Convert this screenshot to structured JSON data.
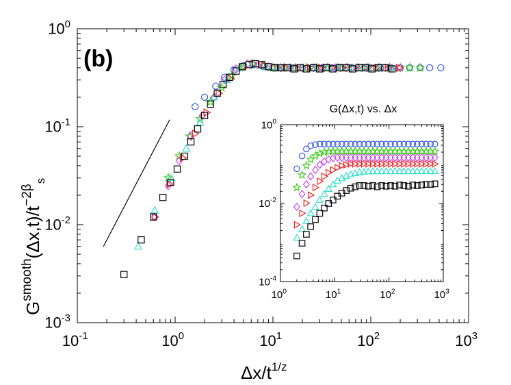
{
  "chart_data": [
    {
      "type": "scatter",
      "panel_label": "(b)",
      "xscale": "log",
      "yscale": "log",
      "xlim": [
        0.1,
        1000
      ],
      "ylim": [
        0.001,
        1
      ],
      "x_ticks": [
        {
          "base": "10",
          "exp": "-1",
          "v": 0.1
        },
        {
          "base": "10",
          "exp": "0",
          "v": 1
        },
        {
          "base": "10",
          "exp": "1",
          "v": 10
        },
        {
          "base": "10",
          "exp": "2",
          "v": 100
        },
        {
          "base": "10",
          "exp": "3",
          "v": 1000
        }
      ],
      "y_ticks": [
        {
          "base": "10",
          "exp": "-3",
          "v": 0.001
        },
        {
          "base": "10",
          "exp": "-2",
          "v": 0.01
        },
        {
          "base": "10",
          "exp": "-1",
          "v": 0.1
        },
        {
          "base": "10",
          "exp": "0",
          "v": 1
        }
      ],
      "xlabel": {
        "main": "Δx/t",
        "sup": "1/z"
      },
      "ylabel": {
        "base": "G",
        "sup1": "smooth",
        "mid": "(Δx,t)/t",
        "sup2": "−2β",
        "sub": "s"
      },
      "guide_line": {
        "x": [
          0.185,
          0.88
        ],
        "y": [
          0.006,
          0.118
        ],
        "color": "#000000"
      },
      "series": [
        {
          "name": "circle",
          "marker": "circle",
          "color": "#3355ee",
          "x": [
            1.6,
            2.0,
            2.6,
            3.2,
            4.0,
            5.0,
            6.3,
            8.0,
            10,
            13,
            16,
            20,
            25,
            32,
            40,
            50,
            63,
            80,
            100,
            126,
            160,
            200,
            250,
            320,
            400,
            520
          ],
          "y": [
            0.16,
            0.2,
            0.26,
            0.32,
            0.38,
            0.42,
            0.43,
            0.41,
            0.4,
            0.4,
            0.4,
            0.4,
            0.4,
            0.4,
            0.4,
            0.4,
            0.4,
            0.4,
            0.4,
            0.4,
            0.4,
            0.4,
            0.4,
            0.4,
            0.4,
            0.4
          ]
        },
        {
          "name": "star",
          "marker": "star",
          "color": "#44cc22",
          "x": [
            0.85,
            1.1,
            1.4,
            1.8,
            2.3,
            3.0,
            3.8,
            4.9,
            6.2,
            8,
            10,
            13,
            17,
            22,
            28,
            36,
            46,
            58,
            75,
            96,
            122,
            156,
            200,
            250,
            320
          ],
          "y": [
            0.03,
            0.05,
            0.08,
            0.12,
            0.18,
            0.25,
            0.33,
            0.41,
            0.44,
            0.42,
            0.4,
            0.4,
            0.4,
            0.4,
            0.4,
            0.4,
            0.4,
            0.4,
            0.4,
            0.4,
            0.4,
            0.4,
            0.4,
            0.4,
            0.4
          ]
        },
        {
          "name": "diamond",
          "marker": "diamond",
          "color": "#cc44ee",
          "x": [
            0.62,
            0.85,
            1.1,
            1.45,
            1.9,
            2.5,
            3.2,
            4.2,
            5.5,
            7,
            9,
            12,
            15,
            20,
            26,
            33,
            43,
            56,
            72,
            93,
            120,
            155,
            200
          ],
          "y": [
            0.012,
            0.025,
            0.045,
            0.08,
            0.13,
            0.2,
            0.3,
            0.39,
            0.44,
            0.43,
            0.41,
            0.4,
            0.4,
            0.4,
            0.4,
            0.4,
            0.4,
            0.4,
            0.4,
            0.4,
            0.4,
            0.4,
            0.4
          ]
        },
        {
          "name": "triangle-right",
          "marker": "triangle-right",
          "color": "#ee2222",
          "x": [
            0.62,
            0.88,
            1.2,
            1.6,
            2.1,
            2.8,
            3.7,
            4.8,
            6.3,
            8.2,
            11,
            14,
            18,
            24,
            31,
            40,
            52,
            68,
            88,
            115,
            150,
            195
          ],
          "y": [
            0.012,
            0.026,
            0.048,
            0.085,
            0.14,
            0.22,
            0.31,
            0.4,
            0.44,
            0.42,
            0.4,
            0.4,
            0.4,
            0.4,
            0.4,
            0.4,
            0.4,
            0.4,
            0.4,
            0.4,
            0.4,
            0.4
          ]
        },
        {
          "name": "triangle-up",
          "marker": "triangle-up",
          "color": "#33ddcc",
          "x": [
            0.42,
            0.62,
            0.9,
            1.3,
            1.8,
            2.5,
            3.4,
            4.6,
            6.2,
            8.4,
            11,
            15,
            20,
            27,
            37,
            50,
            67,
            90,
            122,
            165
          ],
          "y": [
            0.006,
            0.014,
            0.03,
            0.06,
            0.11,
            0.2,
            0.3,
            0.4,
            0.44,
            0.41,
            0.4,
            0.4,
            0.4,
            0.4,
            0.4,
            0.4,
            0.4,
            0.4,
            0.4,
            0.4
          ]
        },
        {
          "name": "square",
          "marker": "square",
          "color": "#000000",
          "x": [
            0.3,
            0.45,
            0.6,
            0.75,
            0.9,
            1.05,
            1.25,
            1.45,
            1.7,
            2.0,
            2.3,
            2.7,
            3.1,
            3.6,
            4.2,
            4.9,
            5.7,
            6.6,
            7.7,
            9,
            10.5,
            12,
            14,
            16.5,
            19,
            22,
            26,
            30,
            35,
            41,
            48,
            56,
            65,
            76,
            88,
            103,
            120,
            140,
            165
          ],
          "y": [
            0.0031,
            0.007,
            0.012,
            0.019,
            0.027,
            0.037,
            0.05,
            0.07,
            0.095,
            0.13,
            0.17,
            0.22,
            0.27,
            0.32,
            0.37,
            0.41,
            0.43,
            0.44,
            0.43,
            0.41,
            0.4,
            0.4,
            0.4,
            0.39,
            0.4,
            0.39,
            0.4,
            0.39,
            0.4,
            0.39,
            0.4,
            0.4,
            0.39,
            0.4,
            0.4,
            0.39,
            0.4,
            0.4,
            0.39
          ]
        }
      ]
    },
    {
      "type": "scatter",
      "title": "G(Δx,t) vs. Δx",
      "xscale": "log",
      "yscale": "log",
      "xlim": [
        1,
        1000
      ],
      "ylim": [
        0.0001,
        1
      ],
      "x_ticks": [
        {
          "base": "10",
          "exp": "0",
          "v": 1
        },
        {
          "base": "10",
          "exp": "1",
          "v": 10
        },
        {
          "base": "10",
          "exp": "2",
          "v": 100
        },
        {
          "base": "10",
          "exp": "3",
          "v": 1000
        }
      ],
      "y_ticks": [
        {
          "base": "10",
          "exp": "-4",
          "v": 0.0001
        },
        {
          "base": "10",
          "exp": "-2",
          "v": 0.01
        },
        {
          "base": "10",
          "exp": "0",
          "v": 1
        }
      ],
      "series": [
        {
          "name": "circle",
          "marker": "circle",
          "color": "#3355ee",
          "x": [
            2,
            2.5,
            3,
            3.6,
            4.4,
            5.3,
            6.4,
            7.7,
            9.3,
            11.2,
            13.5,
            16.3,
            19.7,
            23.8,
            28.7,
            34.6,
            41.8,
            50.4,
            60.8,
            73.4,
            88.6,
            107,
            129,
            156,
            188,
            227,
            274,
            330,
            399,
            481,
            580,
            700
          ],
          "y": [
            0.075,
            0.16,
            0.24,
            0.29,
            0.31,
            0.32,
            0.32,
            0.32,
            0.32,
            0.32,
            0.32,
            0.32,
            0.32,
            0.32,
            0.32,
            0.32,
            0.32,
            0.32,
            0.32,
            0.32,
            0.32,
            0.32,
            0.32,
            0.32,
            0.32,
            0.32,
            0.32,
            0.32,
            0.32,
            0.32,
            0.32,
            0.32
          ]
        },
        {
          "name": "star",
          "marker": "star",
          "color": "#44cc22",
          "x": [
            2,
            2.5,
            3,
            3.6,
            4.4,
            5.3,
            6.4,
            7.7,
            9.3,
            11.2,
            13.5,
            16.3,
            19.7,
            23.8,
            28.7,
            34.6,
            41.8,
            50.4,
            60.8,
            73.4,
            88.6,
            107,
            129,
            156,
            188,
            227,
            274,
            330,
            399,
            481,
            580,
            700
          ],
          "y": [
            0.025,
            0.052,
            0.09,
            0.13,
            0.16,
            0.185,
            0.2,
            0.205,
            0.21,
            0.21,
            0.21,
            0.21,
            0.21,
            0.21,
            0.21,
            0.21,
            0.21,
            0.21,
            0.21,
            0.21,
            0.21,
            0.21,
            0.21,
            0.21,
            0.21,
            0.21,
            0.21,
            0.21,
            0.21,
            0.21,
            0.21,
            0.21
          ]
        },
        {
          "name": "diamond",
          "marker": "diamond",
          "color": "#cc44ee",
          "x": [
            2,
            2.5,
            3,
            3.6,
            4.4,
            5.3,
            6.4,
            7.7,
            9.3,
            11.2,
            13.5,
            16.3,
            19.7,
            23.8,
            28.7,
            34.6,
            41.8,
            50.4,
            60.8,
            73.4,
            88.6,
            107,
            129,
            156,
            188,
            227,
            274,
            330,
            399,
            481,
            580,
            700
          ],
          "y": [
            0.008,
            0.017,
            0.03,
            0.048,
            0.07,
            0.095,
            0.115,
            0.13,
            0.14,
            0.145,
            0.145,
            0.145,
            0.145,
            0.145,
            0.145,
            0.145,
            0.145,
            0.145,
            0.145,
            0.145,
            0.145,
            0.145,
            0.145,
            0.145,
            0.145,
            0.145,
            0.145,
            0.145,
            0.145,
            0.145,
            0.145,
            0.145
          ]
        },
        {
          "name": "triangle-right",
          "marker": "triangle-right",
          "color": "#ee2222",
          "x": [
            2,
            2.5,
            3,
            3.6,
            4.4,
            5.3,
            6.4,
            7.7,
            9.3,
            11.2,
            13.5,
            16.3,
            19.7,
            23.8,
            28.7,
            34.6,
            41.8,
            50.4,
            60.8,
            73.4,
            88.6,
            107,
            129,
            156,
            188,
            227,
            274,
            330,
            399,
            481,
            580,
            700
          ],
          "y": [
            0.0028,
            0.0055,
            0.01,
            0.016,
            0.025,
            0.036,
            0.048,
            0.06,
            0.07,
            0.08,
            0.09,
            0.095,
            0.1,
            0.1,
            0.1,
            0.1,
            0.1,
            0.1,
            0.1,
            0.1,
            0.1,
            0.1,
            0.1,
            0.1,
            0.1,
            0.1,
            0.1,
            0.1,
            0.1,
            0.1,
            0.1,
            0.1
          ]
        },
        {
          "name": "triangle-up",
          "marker": "triangle-up",
          "color": "#33ddcc",
          "x": [
            2,
            2.5,
            3,
            3.6,
            4.4,
            5.3,
            6.4,
            7.7,
            9.3,
            11.2,
            13.5,
            16.3,
            19.7,
            23.8,
            28.7,
            34.6,
            41.8,
            50.4,
            60.8,
            73.4,
            88.6,
            107,
            129,
            156,
            188,
            227,
            274,
            330,
            399,
            481,
            580,
            700
          ],
          "y": [
            0.0013,
            0.0022,
            0.0035,
            0.0055,
            0.008,
            0.012,
            0.017,
            0.023,
            0.03,
            0.037,
            0.043,
            0.049,
            0.054,
            0.058,
            0.061,
            0.063,
            0.064,
            0.065,
            0.065,
            0.065,
            0.065,
            0.065,
            0.065,
            0.065,
            0.065,
            0.065,
            0.065,
            0.065,
            0.065,
            0.065,
            0.065,
            0.065
          ]
        },
        {
          "name": "square",
          "marker": "square",
          "color": "#000000",
          "x": [
            2,
            2.5,
            3,
            3.6,
            4.4,
            5.3,
            6.4,
            7.7,
            9.3,
            11.2,
            13.5,
            16.3,
            19.7,
            23.8,
            28.7,
            34.6,
            41.8,
            50.4,
            60.8,
            73.4,
            88.6,
            107,
            129,
            156,
            188,
            227,
            274,
            330,
            399,
            481,
            580,
            700
          ],
          "y": [
            0.00045,
            0.00095,
            0.0016,
            0.0025,
            0.0038,
            0.0055,
            0.0075,
            0.0098,
            0.012,
            0.015,
            0.018,
            0.021,
            0.024,
            0.026,
            0.028,
            0.028,
            0.027,
            0.028,
            0.026,
            0.028,
            0.027,
            0.028,
            0.027,
            0.029,
            0.028,
            0.027,
            0.029,
            0.028,
            0.029,
            0.03,
            0.03,
            0.031
          ]
        }
      ]
    }
  ]
}
